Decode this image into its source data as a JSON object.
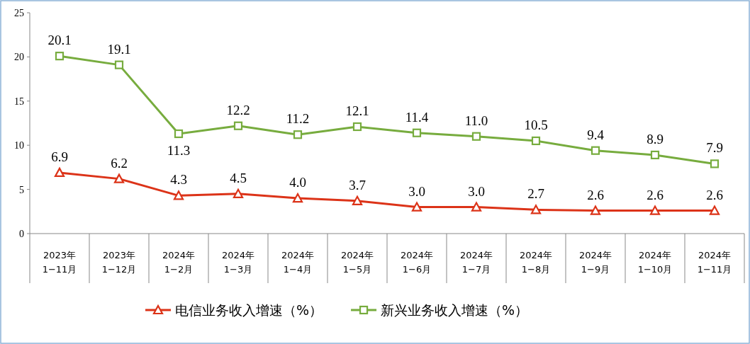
{
  "chart_data": {
    "type": "line",
    "categories": [
      "2023年\n1−11月",
      "2023年\n1−12月",
      "2024年\n1−2月",
      "2024年\n1−3月",
      "2024年\n1−4月",
      "2024年\n1−5月",
      "2024年\n1−6月",
      "2024年\n1−7月",
      "2024年\n1−8月",
      "2024年\n1−9月",
      "2024年\n1−10月",
      "2024年\n1−11月"
    ],
    "series": [
      {
        "name": "电信业务收入增速（%）",
        "color": "#dc3318",
        "marker": "triangle",
        "values": [
          6.9,
          6.2,
          4.3,
          4.5,
          4.0,
          3.7,
          3.0,
          3.0,
          2.7,
          2.6,
          2.6,
          2.6
        ],
        "value_labels": [
          "6.9",
          "6.2",
          "4.3",
          "4.5",
          "4.0",
          "3.7",
          "3.0",
          "3.0",
          "2.7",
          "2.6",
          "2.6",
          "2.6"
        ]
      },
      {
        "name": "新兴业务收入增速（%）",
        "color": "#77ac3e",
        "marker": "square",
        "values": [
          20.1,
          19.1,
          11.3,
          12.2,
          11.2,
          12.1,
          11.4,
          11.0,
          10.5,
          9.4,
          8.9,
          7.9
        ],
        "value_labels": [
          "20.1",
          "19.1",
          "11.3",
          "12.2",
          "11.2",
          "12.1",
          "11.4",
          "11.0",
          "10.5",
          "9.4",
          "8.9",
          "7.9"
        ]
      }
    ],
    "ylim": [
      0,
      25
    ],
    "yticks": [
      0,
      5,
      10,
      15,
      20,
      25
    ],
    "grid": false,
    "legend": "bottom"
  }
}
